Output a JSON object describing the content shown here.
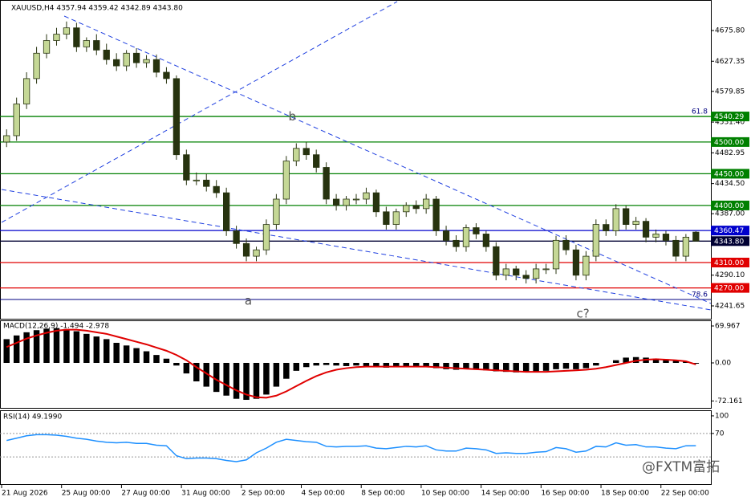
{
  "chart_data": {
    "type": "candlestick",
    "title": "XAUUSD,H4  4357.94 4359.42 4342.89 4343.80",
    "xlim": [
      0,
      71
    ],
    "xticks": [
      {
        "value": 0,
        "label": "21 Aug 2026"
      },
      {
        "value": 6,
        "label": "25 Aug 00:00"
      },
      {
        "value": 12,
        "label": "27 Aug 00:00"
      },
      {
        "value": 18,
        "label": "31 Aug 00:00"
      },
      {
        "value": 24,
        "label": "2 Sep 00:00"
      },
      {
        "value": 30,
        "label": "4 Sep 00:00"
      },
      {
        "value": 36,
        "label": "8 Sep 00:00"
      },
      {
        "value": 42,
        "label": "10 Sep 00:00"
      },
      {
        "value": 48,
        "label": "14 Sep 00:00"
      },
      {
        "value": 54,
        "label": "16 Sep 00:00"
      },
      {
        "value": 60,
        "label": "18 Sep 00:00"
      },
      {
        "value": 66,
        "label": "22 Sep 00:00"
      }
    ],
    "ylim": [
      4221.4,
      4723.9
    ],
    "yticks": [
      {
        "value": 4675.8,
        "label": "4675.80"
      },
      4627.35,
      4579.85,
      {
        "value": 4531.4,
        "label": "4531.40"
      },
      4482.95,
      {
        "value": 4434.5,
        "label": "4434.50"
      },
      {
        "value": 4387,
        "label": "4387.00"
      },
      {
        "value": 4290.1,
        "label": "4290.10"
      },
      4241.65
    ],
    "bull_color": "#c5d896",
    "bear_color": "#27330f",
    "open": [
      4500,
      4510,
      4560,
      4600,
      4640,
      4660,
      4670,
      4680,
      4650,
      4660,
      4645,
      4630,
      4620,
      4640,
      4625,
      4630,
      4610,
      4600,
      4480,
      4440,
      4440,
      4430,
      4420,
      4360,
      4340,
      4320,
      4330,
      4370,
      4410,
      4470,
      4490,
      4480,
      4460,
      4410,
      4400,
      4410,
      4410,
      4420,
      4390,
      4370,
      4390,
      4400,
      4395,
      4410,
      4360,
      4345,
      4335,
      4365,
      4355,
      4335,
      4290,
      4300,
      4290,
      4285,
      4300,
      4300,
      4345,
      4330,
      4290,
      4320,
      4370,
      4360,
      4395,
      4370,
      4375,
      4350,
      4355,
      4345,
      4320,
      4357.94
    ],
    "high": [
      4520,
      4570,
      4610,
      4650,
      4670,
      4680,
      4690,
      4688,
      4665,
      4670,
      4655,
      4640,
      4645,
      4648,
      4637,
      4638,
      4618,
      4605,
      4488,
      4452,
      4450,
      4440,
      4428,
      4368,
      4348,
      4335,
      4378,
      4418,
      4478,
      4498,
      4500,
      4488,
      4468,
      4418,
      4415,
      4418,
      4428,
      4425,
      4398,
      4395,
      4405,
      4408,
      4418,
      4415,
      4368,
      4353,
      4370,
      4372,
      4360,
      4342,
      4308,
      4305,
      4298,
      4308,
      4308,
      4352,
      4353,
      4338,
      4328,
      4378,
      4378,
      4402,
      4400,
      4382,
      4380,
      4362,
      4360,
      4352,
      4355,
      4359.42
    ],
    "low": [
      4492,
      4502,
      4552,
      4592,
      4632,
      4652,
      4662,
      4642,
      4642,
      4637,
      4622,
      4612,
      4612,
      4617,
      4617,
      4602,
      4592,
      4472,
      4432,
      4432,
      4422,
      4412,
      4352,
      4332,
      4312,
      4312,
      4322,
      4362,
      4402,
      4462,
      4472,
      4452,
      4402,
      4392,
      4392,
      4402,
      4402,
      4382,
      4362,
      4362,
      4382,
      4387,
      4387,
      4352,
      4337,
      4327,
      4327,
      4347,
      4327,
      4282,
      4282,
      4282,
      4277,
      4277,
      4292,
      4292,
      4322,
      4282,
      4282,
      4312,
      4352,
      4352,
      4362,
      4362,
      4342,
      4342,
      4337,
      4312,
      4312,
      4342.89
    ],
    "close": [
      4510,
      4560,
      4600,
      4640,
      4660,
      4670,
      4680,
      4650,
      4660,
      4645,
      4630,
      4620,
      4640,
      4625,
      4630,
      4610,
      4600,
      4480,
      4440,
      4440,
      4430,
      4420,
      4360,
      4340,
      4320,
      4330,
      4370,
      4410,
      4470,
      4490,
      4480,
      4460,
      4410,
      4400,
      4410,
      4410,
      4420,
      4390,
      4370,
      4390,
      4400,
      4395,
      4410,
      4360,
      4345,
      4335,
      4365,
      4355,
      4335,
      4290,
      4300,
      4290,
      4285,
      4300,
      4300,
      4345,
      4330,
      4290,
      4320,
      4370,
      4360,
      4395,
      4370,
      4375,
      4350,
      4355,
      4345,
      4320,
      4350,
      4343.8
    ],
    "levels": [
      {
        "value": 4540.29,
        "label": "4540.29",
        "color": "#008000"
      },
      {
        "value": 4500,
        "label": "4500.00",
        "color": "#008000"
      },
      {
        "value": 4450,
        "label": "4450.00",
        "color": "#008000"
      },
      {
        "value": 4400,
        "label": "4400.00",
        "color": "#008000"
      },
      {
        "value": 4360.47,
        "label": "4360.47",
        "color": "#0000cc"
      },
      {
        "value": 4343.8,
        "label": "4343.80",
        "color": "#000033"
      },
      {
        "value": 4310,
        "label": "4310.00",
        "color": "#e00000"
      },
      {
        "value": 4270,
        "label": "4270.00",
        "color": "#e00000"
      }
    ],
    "fib_levels": [
      {
        "value": 4540.29,
        "label": "61.8"
      },
      {
        "value": 4251.8,
        "label": "78.6"
      }
    ],
    "trendlines": [
      {
        "x": [
          6.27,
          71
        ],
        "y": [
          4698.6,
          4245.5
        ]
      },
      {
        "x": [
          0,
          39.6
        ],
        "y": [
          4373.3,
          4721.4
        ]
      },
      {
        "x": [
          0,
          71
        ],
        "y": [
          4425.2,
          4235.4
        ]
      }
    ],
    "annotations": [
      {
        "text": "a",
        "x": 24.7,
        "y": 4249
      },
      {
        "text": "b",
        "x": 29.1,
        "y": 4540
      },
      {
        "text": "c?",
        "x": 58.2,
        "y": 4229
      }
    ],
    "macd": {
      "label": "MACD(12,26,9) -1.494 -2.978",
      "ylim": [
        -85.2,
        80.6
      ],
      "yticks": [
        69.967,
        {
          "value": 0,
          "label": "0.00"
        },
        -72.161
      ],
      "histogram": [
        45,
        52,
        58,
        62,
        65,
        66,
        64,
        60,
        55,
        50,
        45,
        38,
        33,
        28,
        22,
        15,
        8,
        -5,
        -20,
        -35,
        -45,
        -55,
        -62,
        -68,
        -70,
        -68,
        -60,
        -45,
        -30,
        -15,
        -8,
        -5,
        -4,
        -5,
        -6,
        -5,
        -6,
        -8,
        -9,
        -8,
        -7,
        -6,
        -8,
        -10,
        -12,
        -13,
        -12,
        -13,
        -14,
        -16,
        -17,
        -18,
        -18,
        -17,
        -15,
        -12,
        -11,
        -12,
        -10,
        -5,
        0,
        5,
        10,
        11,
        10,
        8,
        7,
        5,
        3,
        -1.494
      ],
      "signal": [
        30,
        38,
        46,
        52,
        57,
        61,
        63,
        63,
        61,
        58,
        55,
        50,
        45,
        40,
        35,
        29,
        23,
        15,
        5,
        -8,
        -20,
        -32,
        -42,
        -52,
        -60,
        -65,
        -66,
        -62,
        -54,
        -44,
        -34,
        -25,
        -18,
        -13,
        -10,
        -8,
        -7,
        -7,
        -7,
        -7,
        -7,
        -7,
        -7,
        -8,
        -9,
        -10,
        -11,
        -12,
        -13,
        -14,
        -15,
        -16,
        -17,
        -17,
        -17,
        -16,
        -15,
        -14,
        -13,
        -11,
        -8,
        -4,
        0,
        4,
        6,
        7,
        6,
        5,
        3,
        -2.978
      ],
      "hist_color": "#000000",
      "signal_color": "#e00000"
    },
    "rsi": {
      "label": "RSI(14) 49.1990",
      "ylim": [
        -16.4,
        109.5
      ],
      "yticks": [
        100,
        70
      ],
      "levels": [
        70,
        30
      ],
      "color": "#1e90ff",
      "values": [
        58,
        62,
        66,
        68,
        68,
        67,
        65,
        62,
        60,
        57,
        55,
        54,
        55,
        53,
        53,
        50,
        49,
        32,
        27,
        28,
        28,
        27,
        24,
        22,
        25,
        37,
        45,
        55,
        60,
        58,
        56,
        55,
        48,
        47,
        48,
        48,
        49,
        45,
        44,
        46,
        48,
        47,
        49,
        42,
        40,
        40,
        45,
        44,
        42,
        36,
        37,
        36,
        36,
        38,
        39,
        46,
        44,
        38,
        40,
        48,
        47,
        54,
        50,
        51,
        47,
        47,
        45,
        44,
        49,
        49.199
      ]
    },
    "watermark": "@FXTM富拓"
  }
}
